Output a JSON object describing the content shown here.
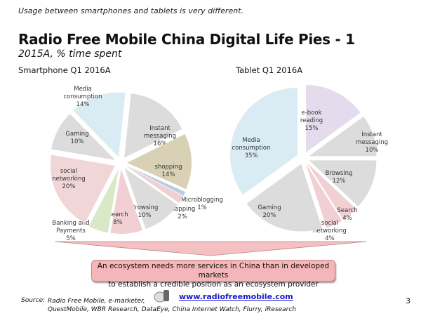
{
  "tagline": "Usage between smartphones and tablets is very different.",
  "title": "Radio Free Mobile China Digital Life Pies - 1",
  "subtitle": "2015A, % time spent",
  "callout": [
    "An ecosystem needs more services in China than in developed markets",
    "to establish a credible position as an ecosystem provider"
  ],
  "footer": {
    "source_label": "Source:",
    "source_lines": [
      "Radio Free Mobile, e-marketer,",
      "QuestMobile, WBR Research, DataEye, China Internet Watch, Flurry, iResearch"
    ],
    "url": "www.radiofreemobile.com",
    "page": "3"
  },
  "chart_data": [
    {
      "type": "pie",
      "title": "Smartphone Q1 2016A",
      "unit": "%",
      "slices": [
        {
          "label": "Instant messaging",
          "value": 16,
          "color": "#dcdcdc"
        },
        {
          "label": "shopping",
          "value": 14,
          "color": "#d9d1b5"
        },
        {
          "label": "Microblogging",
          "value": 1,
          "color": "#b7cde6"
        },
        {
          "label": "Mapping",
          "value": 2,
          "color": "#f1d0d4"
        },
        {
          "label": "Browsing",
          "value": 10,
          "color": "#dcdcdc"
        },
        {
          "label": "Search",
          "value": 8,
          "color": "#f1d0d4"
        },
        {
          "label": "Banking and Payments",
          "value": 5,
          "color": "#d9e8c6"
        },
        {
          "label": "social networking",
          "value": 20,
          "color": "#f1d6d8"
        },
        {
          "label": "Gaming",
          "value": 10,
          "color": "#dcdcdc"
        },
        {
          "label": "Media consumption",
          "value": 14,
          "color": "#d9ecf3"
        }
      ]
    },
    {
      "type": "pie",
      "title": "Tablet Q1 2016A",
      "unit": "%",
      "slices": [
        {
          "label": "e-book reading",
          "value": 15,
          "color": "#e4dcec"
        },
        {
          "label": "Instant messaging",
          "value": 10,
          "color": "#dcdcdc"
        },
        {
          "label": "Browsing",
          "value": 12,
          "color": "#dcdcdc"
        },
        {
          "label": "Search",
          "value": 4,
          "color": "#f1d0d4"
        },
        {
          "label": "social networking",
          "value": 4,
          "color": "#f1d0d4"
        },
        {
          "label": "Gaming",
          "value": 20,
          "color": "#dcdcdc"
        },
        {
          "label": "Media consumption",
          "value": 35,
          "color": "#d9ecf3"
        }
      ]
    }
  ]
}
